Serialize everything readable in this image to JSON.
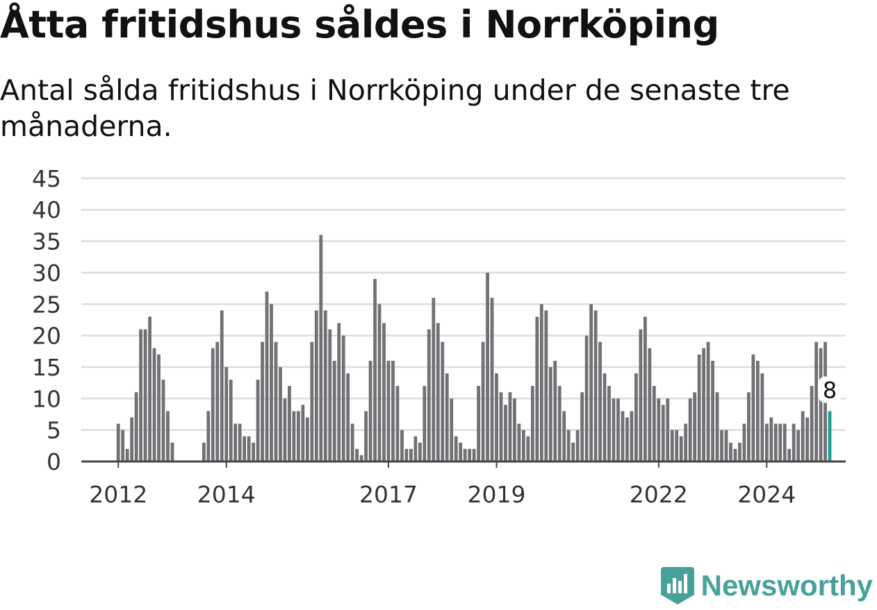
{
  "title": "Åtta fritidshus såldes i Norrköping",
  "subtitle": "Antal sålda fritidshus i Norrköping under de senaste tre månaderna.",
  "brand": {
    "name": "Newsworthy",
    "icon": "newsworthy-logo-icon",
    "color": "#46a19a"
  },
  "colors": {
    "bar": "#727074",
    "highlight": "#1a9e94",
    "grid": "#dcdcdc",
    "axis": "#444444",
    "text": "#333333"
  },
  "chart_data": {
    "type": "bar",
    "title": "",
    "xlabel": "",
    "ylabel": "",
    "ylim": [
      0,
      45
    ],
    "yticks": [
      0,
      5,
      10,
      15,
      20,
      25,
      30,
      35,
      40,
      45
    ],
    "xtick_labels": [
      {
        "label": "2012",
        "year": 2012
      },
      {
        "label": "2014",
        "year": 2014
      },
      {
        "label": "2017",
        "year": 2017
      },
      {
        "label": "2019",
        "year": 2019
      },
      {
        "label": "2022",
        "year": 2022
      },
      {
        "label": "2024",
        "year": 2024
      }
    ],
    "grid": true,
    "start": "2012-01",
    "frequency": "monthly",
    "values": [
      6,
      5,
      2,
      7,
      11,
      21,
      21,
      23,
      18,
      17,
      13,
      8,
      3,
      0,
      0,
      0,
      0,
      0,
      0,
      3,
      8,
      18,
      19,
      24,
      15,
      13,
      6,
      6,
      4,
      4,
      3,
      13,
      19,
      27,
      25,
      19,
      15,
      10,
      12,
      8,
      8,
      9,
      7,
      19,
      24,
      36,
      24,
      21,
      16,
      22,
      20,
      14,
      6,
      2,
      1,
      8,
      16,
      29,
      25,
      22,
      16,
      16,
      12,
      5,
      2,
      2,
      4,
      3,
      12,
      21,
      26,
      22,
      19,
      14,
      10,
      4,
      3,
      2,
      2,
      2,
      12,
      19,
      30,
      26,
      14,
      11,
      9,
      11,
      10,
      6,
      5,
      4,
      12,
      23,
      25,
      24,
      15,
      16,
      12,
      8,
      5,
      3,
      5,
      11,
      20,
      25,
      24,
      19,
      14,
      12,
      10,
      10,
      8,
      7,
      8,
      14,
      21,
      23,
      18,
      12,
      10,
      9,
      10,
      5,
      5,
      4,
      6,
      10,
      11,
      17,
      18,
      19,
      16,
      11,
      5,
      5,
      3,
      2,
      3,
      6,
      11,
      17,
      16,
      14,
      6,
      7,
      6,
      6,
      6,
      2,
      6,
      5,
      8,
      7,
      12,
      19,
      18,
      19,
      8
    ],
    "highlight": {
      "index": 158,
      "value": 8,
      "label": "8"
    }
  }
}
